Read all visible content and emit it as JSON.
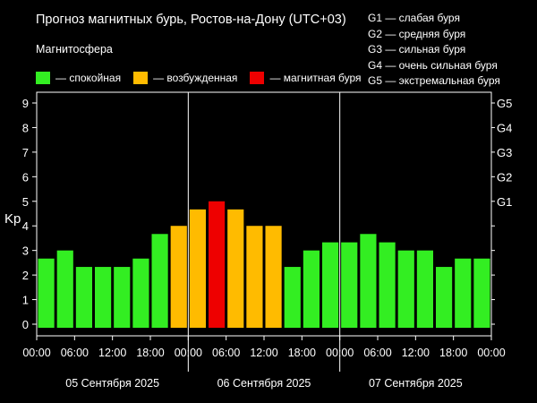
{
  "chart_data": {
    "type": "bar",
    "title": "Прогноз магнитных бурь, Ростов-на-Дону (UTC+03)",
    "subtitle": "Магнитосфера",
    "ylabel": "Kp",
    "ylim": [
      0,
      9
    ],
    "yticks": [
      0,
      1,
      2,
      3,
      4,
      5,
      6,
      7,
      8,
      9
    ],
    "grid": false,
    "x_tick_labels": [
      "00:00",
      "06:00",
      "12:00",
      "18:00",
      "00:00",
      "06:00",
      "12:00",
      "18:00",
      "00:00",
      "06:00",
      "12:00",
      "18:00",
      "00:00"
    ],
    "dates": [
      "05 Сентября 2025",
      "06 Сентября 2025",
      "07 Сентября 2025"
    ],
    "x": [
      "05 00:00",
      "05 03:00",
      "05 06:00",
      "05 09:00",
      "05 12:00",
      "05 15:00",
      "05 18:00",
      "05 21:00",
      "06 00:00",
      "06 03:00",
      "06 06:00",
      "06 09:00",
      "06 12:00",
      "06 15:00",
      "06 18:00",
      "06 21:00",
      "07 00:00",
      "07 03:00",
      "07 06:00",
      "07 09:00",
      "07 12:00",
      "07 15:00",
      "07 18:00",
      "07 21:00"
    ],
    "values": [
      2.67,
      3.0,
      2.33,
      2.33,
      2.33,
      2.67,
      3.67,
      4.0,
      4.67,
      5.0,
      4.67,
      4.0,
      4.0,
      2.33,
      3.0,
      3.33,
      3.33,
      3.67,
      3.33,
      3.0,
      3.0,
      2.33,
      2.67,
      2.67
    ],
    "status": [
      "calm",
      "calm",
      "calm",
      "calm",
      "calm",
      "calm",
      "calm",
      "excited",
      "excited",
      "storm",
      "excited",
      "excited",
      "excited",
      "calm",
      "calm",
      "calm",
      "calm",
      "calm",
      "calm",
      "calm",
      "calm",
      "calm",
      "calm",
      "calm"
    ],
    "legend": [
      {
        "key": "calm",
        "label": "— спокойная",
        "color": "#33ee22"
      },
      {
        "key": "excited",
        "label": "— возбужденная",
        "color": "#ffbb00"
      },
      {
        "key": "storm",
        "label": "— магнитная буря",
        "color": "#ee0000"
      }
    ],
    "g_axis": [
      {
        "label": "G1",
        "kp": 5
      },
      {
        "label": "G2",
        "kp": 6
      },
      {
        "label": "G3",
        "kp": 7
      },
      {
        "label": "G4",
        "kp": 8
      },
      {
        "label": "G5",
        "kp": 9
      }
    ],
    "g_legend": [
      "G1 — слабая буря",
      "G2 — средняя буря",
      "G3 — сильная буря",
      "G4 — очень сильная буря",
      "G5 — экстремальная буря"
    ]
  }
}
